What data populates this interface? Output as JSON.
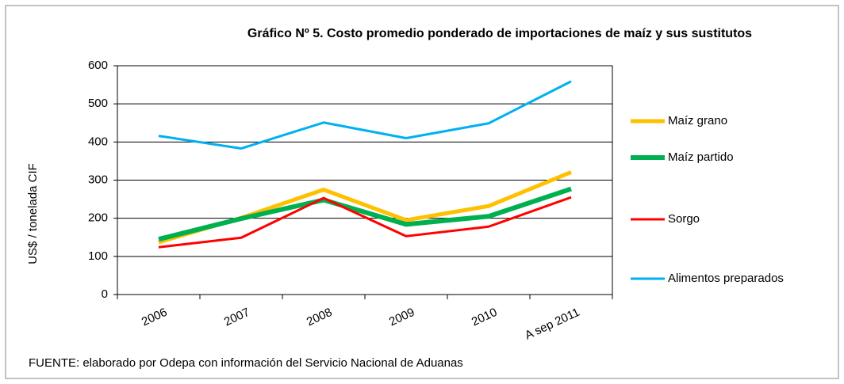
{
  "chart_data": {
    "type": "line",
    "title": "Gráfico Nº 5. Costo promedio ponderado de importaciones de maíz y sus sustitutos",
    "y_label": "US$ / tonelada CIF",
    "source": "FUENTE: elaborado por Odepa con información del Servicio Nacional de Aduanas",
    "categories": [
      "2006",
      "2007",
      "2008",
      "2009",
      "2010",
      "A sep 2011"
    ],
    "series": [
      {
        "name": "Maíz grano",
        "color": "#ffc000",
        "values": [
          137,
          201,
          275,
          195,
          232,
          321
        ]
      },
      {
        "name": "Maíz partido",
        "color": "#00b050",
        "values": [
          145,
          199,
          248,
          184,
          205,
          277
        ]
      },
      {
        "name": "Sorgo",
        "color": "#ff0000",
        "values": [
          124,
          149,
          253,
          153,
          178,
          255
        ]
      },
      {
        "name": "Alimentos preparados",
        "color": "#00b0f0",
        "values": [
          416,
          383,
          451,
          410,
          449,
          559
        ]
      }
    ],
    "ylim": [
      0,
      600
    ],
    "yticks": [
      0,
      100,
      200,
      300,
      400,
      500,
      600
    ],
    "grid": true,
    "legend": "right"
  }
}
